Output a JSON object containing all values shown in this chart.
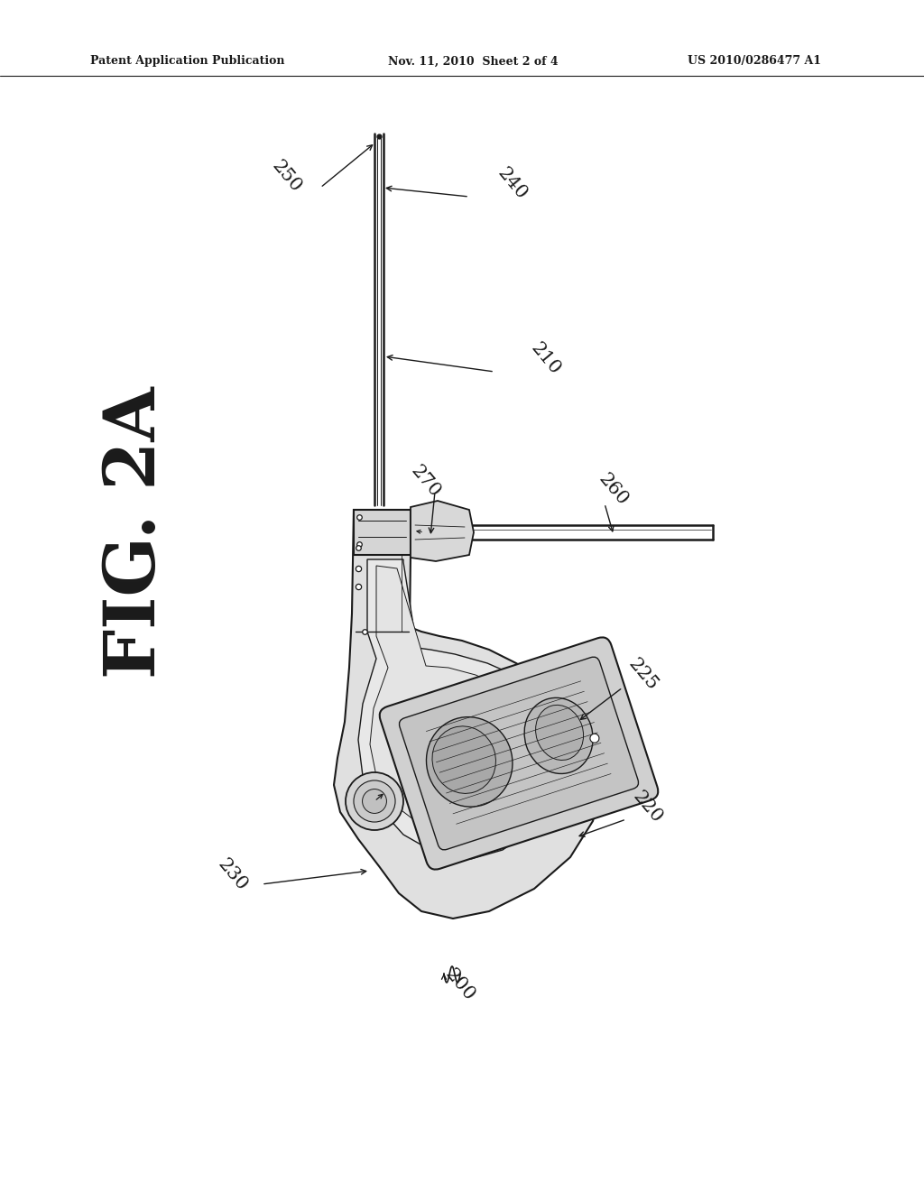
{
  "header_left": "Patent Application Publication",
  "header_middle": "Nov. 11, 2010  Sheet 2 of 4",
  "header_right": "US 2010/0286477 A1",
  "fig_label": "FIG. 2A",
  "background_color": "#ffffff",
  "line_color": "#1a1a1a",
  "fill_light": "#e0e0e0",
  "fill_mid": "#cccccc",
  "fill_dark": "#aaaaaa"
}
